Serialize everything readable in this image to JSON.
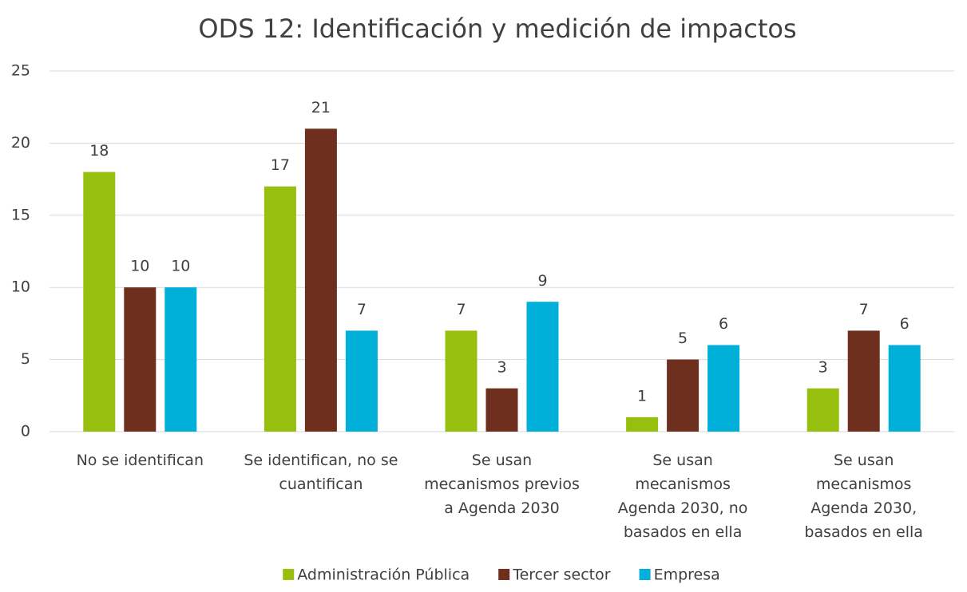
{
  "chart_data": {
    "type": "bar",
    "title": "ODS 12: Identificación y medición de impactos",
    "categories": [
      "No se identifican",
      "Se identifican, no se\ncuantifican",
      "Se usan\nmecanismos previos\na Agenda 2030",
      "Se usan\nmecanismos\nAgenda 2030, no\nbasados en ella",
      "Se usan\nmecanismos\nAgenda 2030,\nbasados en ella"
    ],
    "series": [
      {
        "name": "Administración Pública",
        "color": "#97bf0d",
        "values": [
          18,
          17,
          7,
          1,
          3
        ]
      },
      {
        "name": "Tercer sector",
        "color": "#6e2f1f",
        "values": [
          10,
          21,
          3,
          5,
          7
        ]
      },
      {
        "name": "Empresa",
        "color": "#00b0d8",
        "values": [
          10,
          7,
          9,
          6,
          6
        ]
      }
    ],
    "ylim": [
      0,
      25
    ],
    "yticks": [
      0,
      5,
      10,
      15,
      20,
      25
    ],
    "grid": true,
    "legend": "bottom"
  }
}
